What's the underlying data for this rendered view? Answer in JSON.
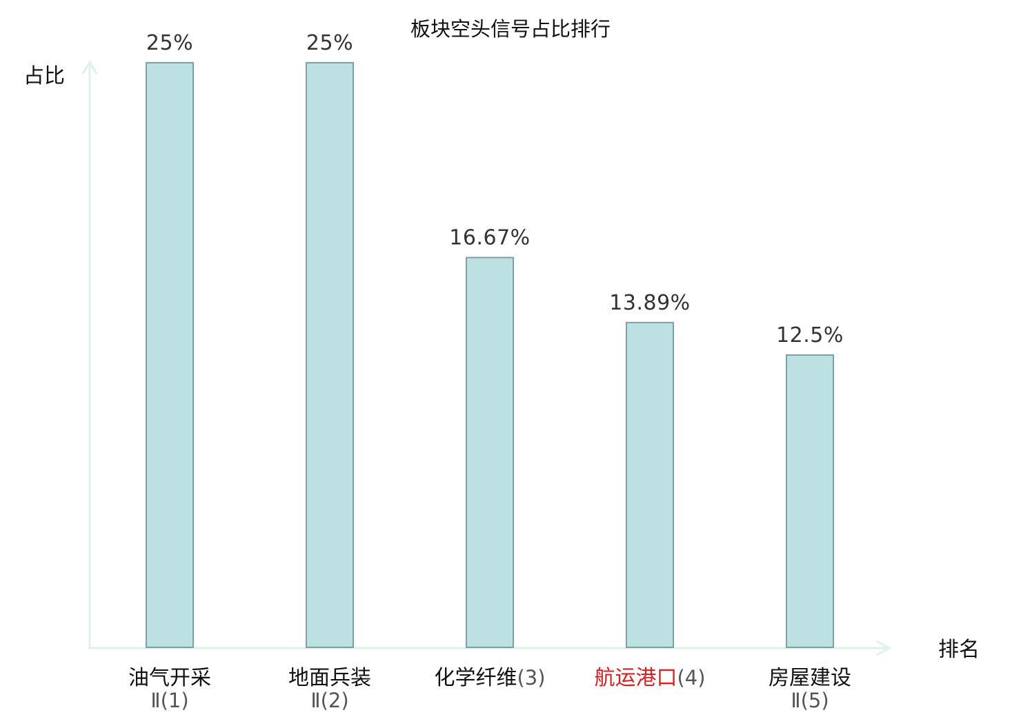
{
  "chart_data": {
    "type": "bar",
    "title": "板块空头信号占比排行",
    "ylabel": "占比",
    "xlabel": "排名",
    "ylim": [
      0,
      25
    ],
    "grid": false,
    "categories": [
      {
        "name": "油气开采",
        "rank": "Ⅱ(1)",
        "highlight": false
      },
      {
        "name": "地面兵装",
        "rank": "Ⅱ(2)",
        "highlight": false
      },
      {
        "name": "化学纤维",
        "rank": "(3)",
        "highlight": false
      },
      {
        "name": "航运港口",
        "rank": "(4)",
        "highlight": true
      },
      {
        "name": "房屋建设",
        "rank": "Ⅱ(5)",
        "highlight": false
      }
    ],
    "values": [
      25,
      25,
      16.67,
      13.89,
      12.5
    ],
    "value_labels": [
      "25%",
      "25%",
      "16.67%",
      "13.89%",
      "12.5%"
    ],
    "colors": {
      "bar_fill": "#bde0e2",
      "bar_stroke": "#7fa0a2",
      "axis": "#dff1ee",
      "highlight_text": "#dd1e1e",
      "text": "#111111"
    }
  }
}
